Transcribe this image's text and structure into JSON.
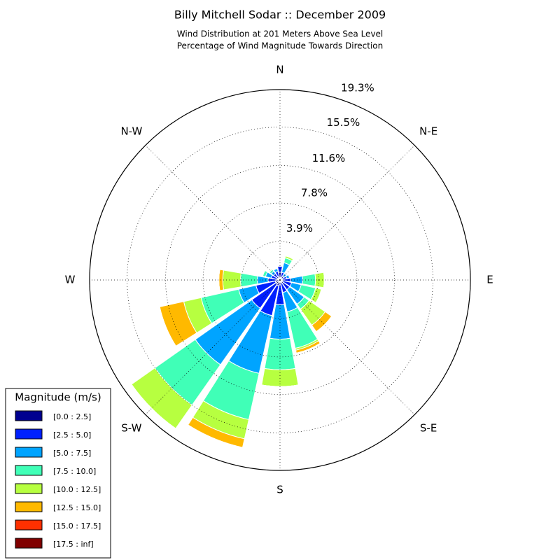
{
  "chart_data": {
    "type": "windrose",
    "title": "Billy Mitchell Sodar :: December 2009",
    "subtitle": [
      "Wind Distribution at 201 Meters Above Sea Level",
      "Percentage of Wind Magnitude Towards Direction"
    ],
    "categories": [
      "N",
      null,
      "N-E",
      null,
      "E",
      null,
      "S-E",
      null,
      "S",
      null,
      "S-W",
      null,
      "W",
      null,
      "N-W",
      null
    ],
    "rlim": [
      0,
      19.3
    ],
    "rticks": [
      {
        "value": 3.9,
        "label": "3.9%"
      },
      {
        "value": 7.8,
        "label": "7.8%"
      },
      {
        "value": 11.6,
        "label": "11.6%"
      },
      {
        "value": 15.5,
        "label": "15.5%"
      },
      {
        "value": 19.3,
        "label": "19.3%"
      }
    ],
    "grid": true,
    "legend": {
      "title": "Magnitude (m/s)",
      "position": "lower left"
    },
    "series": [
      {
        "name": "[0.0 : 2.5]",
        "color": "#00008f",
        "values": [
          0.8,
          0.3,
          0.2,
          0.2,
          0.3,
          0.3,
          0.3,
          0.3,
          0.5,
          0.6,
          0.5,
          0.5,
          0.4,
          0.3,
          0.3,
          0.4
        ]
      },
      {
        "name": "[2.5 : 5.0]",
        "color": "#0020ff",
        "values": [
          0.6,
          0.5,
          0.3,
          0.5,
          0.8,
          0.9,
          0.9,
          1.0,
          2.0,
          3.1,
          3.0,
          2.0,
          0.8,
          0.6,
          0.5,
          0.5
        ]
      },
      {
        "name": "[5.0 : 7.5]",
        "color": "#00a4ff",
        "values": [
          0,
          1.0,
          0.3,
          0.3,
          1.2,
          1.0,
          1.8,
          2.0,
          3.5,
          6.0,
          7.0,
          1.8,
          1.1,
          0.6,
          0.3,
          0.3
        ]
      },
      {
        "name": "[7.5 : 10.0]",
        "color": "#40ffb7",
        "values": [
          0,
          0.5,
          0,
          0,
          1.3,
          1.5,
          0.6,
          3.8,
          3.1,
          4.8,
          5.0,
          3.9,
          1.7,
          0.3,
          0.2,
          0
        ]
      },
      {
        "name": "[10.0 : 12.5]",
        "color": "#b7ff40",
        "values": [
          0,
          0.2,
          0,
          0,
          0.9,
          0.6,
          2.0,
          0.2,
          1.7,
          2.0,
          2.9,
          1.8,
          1.8,
          0,
          0.1,
          0
        ]
      },
      {
        "name": "[12.5 : 15.0]",
        "color": "#ffb900",
        "values": [
          0,
          0,
          0,
          0,
          0,
          0,
          0.8,
          0.3,
          0,
          0.9,
          0,
          2.5,
          0.4,
          0,
          0,
          0
        ]
      },
      {
        "name": "[15.0 : 17.5]",
        "color": "#ff3000",
        "values": [
          0,
          0,
          0,
          0,
          0,
          0,
          0,
          0,
          0,
          0,
          0,
          0,
          0,
          0,
          0,
          0
        ]
      },
      {
        "name": "[17.5 : inf]",
        "color": "#800000",
        "values": [
          0,
          0,
          0,
          0,
          0,
          0,
          0,
          0,
          0,
          0,
          0,
          0,
          0,
          0,
          0,
          0
        ]
      }
    ]
  }
}
